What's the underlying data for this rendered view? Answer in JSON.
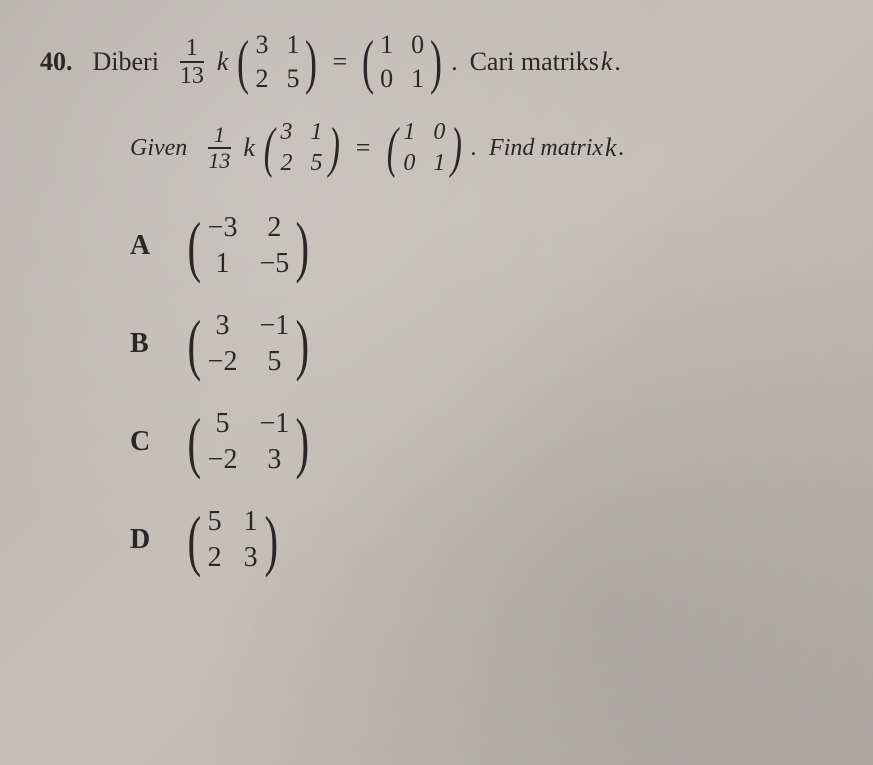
{
  "question": {
    "number": "40.",
    "line1": {
      "prefix": "Diberi",
      "fraction_num": "1",
      "fraction_den": "13",
      "var": "k",
      "matrixA": [
        "3",
        "1",
        "2",
        "5"
      ],
      "matrixB": [
        "1",
        "0",
        "0",
        "1"
      ],
      "suffix": "Cari matriks",
      "var2": "k",
      "punct": "."
    },
    "line2": {
      "prefix": "Given",
      "fraction_num": "1",
      "fraction_den": "13",
      "var": "k",
      "matrixA": [
        "3",
        "1",
        "2",
        "5"
      ],
      "matrixB": [
        "1",
        "0",
        "0",
        "1"
      ],
      "suffix": "Find matrix",
      "var2": "k",
      "punct": "."
    }
  },
  "equals": "=",
  "options": {
    "A": {
      "label": "A",
      "matrix": [
        "−3",
        "2",
        "1",
        "−5"
      ]
    },
    "B": {
      "label": "B",
      "matrix": [
        "3",
        "−1",
        "−2",
        "5"
      ]
    },
    "C": {
      "label": "C",
      "matrix": [
        "5",
        "−1",
        "−2",
        "3"
      ]
    },
    "D": {
      "label": "D",
      "matrix": [
        "5",
        "1",
        "2",
        "3"
      ]
    }
  },
  "colors": {
    "text": "#2a2826",
    "background": "#bcb8af"
  },
  "typography": {
    "body_fontsize": 26,
    "option_fontsize": 28,
    "font_family": "Times New Roman"
  }
}
